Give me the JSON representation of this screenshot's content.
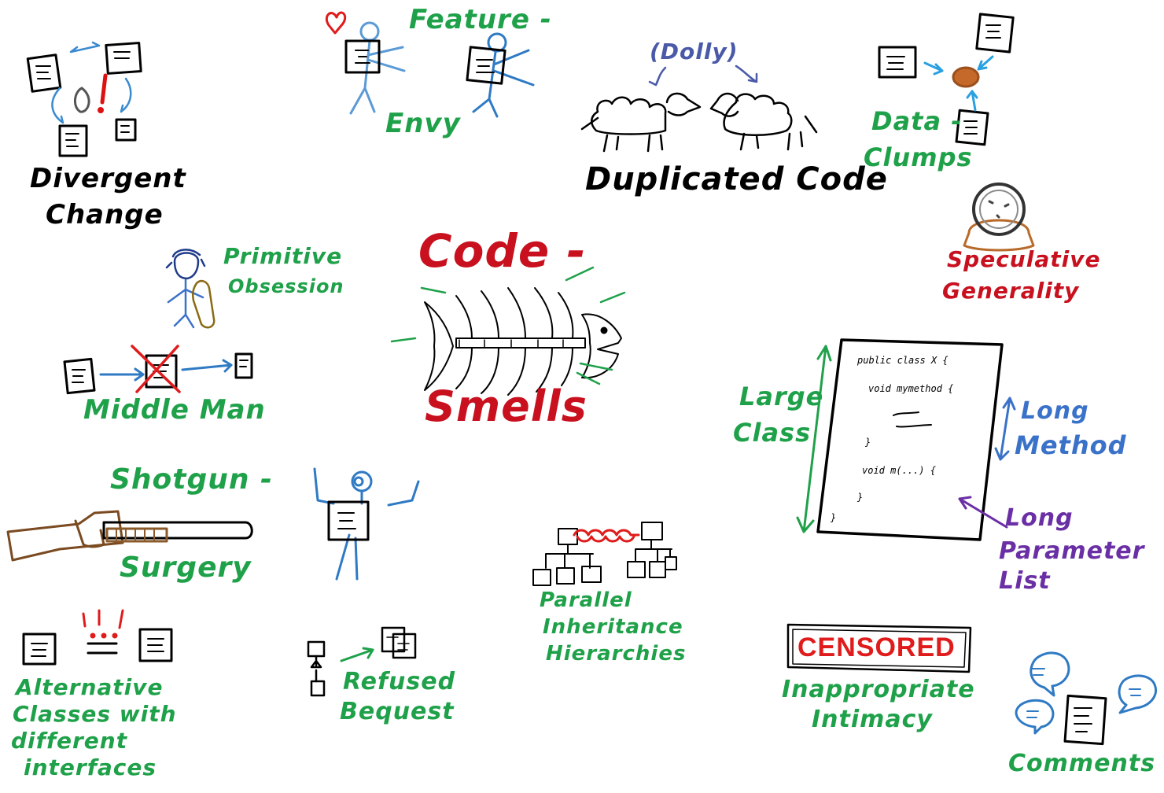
{
  "center": {
    "line1": "Code -",
    "line2": "Smells"
  },
  "dolly": "(Dolly)",
  "smells": {
    "divergent_change": [
      "Divergent",
      "Change"
    ],
    "feature_envy": [
      "Feature -",
      "Envy"
    ],
    "duplicated_code": "Duplicated Code",
    "data_clumps": [
      "Data -",
      "Clumps"
    ],
    "speculative_generality": [
      "Speculative",
      "Generality"
    ],
    "primitive_obsession": [
      "Primitive",
      "Obsession"
    ],
    "middle_man": "Middle Man",
    "large_class": [
      "Large",
      "Class"
    ],
    "long_method": [
      "Long",
      "Method"
    ],
    "long_parameter_list": [
      "Long",
      "Parameter",
      "List"
    ],
    "shotgun_surgery": [
      "Shotgun -",
      "Surgery"
    ],
    "alternative_classes": [
      "Alternative",
      "Classes with",
      "different",
      "interfaces"
    ],
    "refused_bequest": [
      "Refused",
      "Bequest"
    ],
    "parallel_inheritance": [
      "Parallel",
      "Inheritance",
      "Hierarchies"
    ],
    "inappropriate_intimacy": [
      "Inappropriate",
      "Intimacy"
    ],
    "comments": "Comments"
  },
  "censored": "CENSORED",
  "code_sketch": {
    "line1": "public class X {",
    "line2": "void mymethod {",
    "line3": "}",
    "line4": "void m(...) {",
    "line5": "}",
    "line6": "}"
  },
  "colors": {
    "green": "#1fa14a",
    "red": "#c8101e",
    "blue": "#3a72c9",
    "purple": "#6b2fa5",
    "brown": "#8a5a2b"
  }
}
